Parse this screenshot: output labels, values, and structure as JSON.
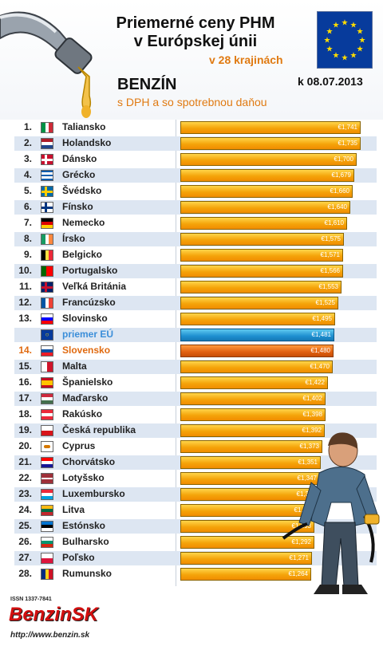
{
  "header": {
    "title_line1": "Priemerné ceny PHM",
    "title_line2": "v Európskej únii",
    "subtitle": "v 28 krajinách",
    "fuel_type": "BENZÍN",
    "price_note": "s DPH a so spotrebnou daňou",
    "date": "k 08.07.2013"
  },
  "footer": {
    "issn": "ISSN 1337-7841",
    "logo": "BenzinSK",
    "url": "http://www.benzin.sk"
  },
  "colors": {
    "bar": "#f5a40a",
    "eu_bar": "#1e8fd0",
    "sk_bar": "#e06010",
    "highlight_text": "#e07a12"
  },
  "chart_data": {
    "type": "bar",
    "orientation": "horizontal",
    "xlim": [
      0,
      1.8
    ],
    "rows": [
      {
        "rank": "1.",
        "country": "Taliansko",
        "value": "€1,741",
        "v": 1.741,
        "flag": "it"
      },
      {
        "rank": "2.",
        "country": "Holandsko",
        "value": "€1,735",
        "v": 1.735,
        "flag": "nl"
      },
      {
        "rank": "3.",
        "country": "Dánsko",
        "value": "€1,700",
        "v": 1.7,
        "flag": "dk"
      },
      {
        "rank": "4.",
        "country": "Grécko",
        "value": "€1,679",
        "v": 1.679,
        "flag": "gr"
      },
      {
        "rank": "5.",
        "country": "Švédsko",
        "value": "€1,660",
        "v": 1.66,
        "flag": "se"
      },
      {
        "rank": "6.",
        "country": "Fínsko",
        "value": "€1,640",
        "v": 1.64,
        "flag": "fi"
      },
      {
        "rank": "7.",
        "country": "Nemecko",
        "value": "€1,610",
        "v": 1.61,
        "flag": "de"
      },
      {
        "rank": "8.",
        "country": "Írsko",
        "value": "€1,575",
        "v": 1.575,
        "flag": "ie"
      },
      {
        "rank": "9.",
        "country": "Belgicko",
        "value": "€1,571",
        "v": 1.571,
        "flag": "be"
      },
      {
        "rank": "10.",
        "country": "Portugalsko",
        "value": "€1,566",
        "v": 1.566,
        "flag": "pt"
      },
      {
        "rank": "11.",
        "country": "Veľká Británia",
        "value": "€1,553",
        "v": 1.553,
        "flag": "gb"
      },
      {
        "rank": "12.",
        "country": "Francúzsko",
        "value": "€1,525",
        "v": 1.525,
        "flag": "fr"
      },
      {
        "rank": "13.",
        "country": "Slovinsko",
        "value": "€1,495",
        "v": 1.495,
        "flag": "si"
      },
      {
        "rank": "",
        "country": "priemer EÚ",
        "value": "€1,481",
        "v": 1.481,
        "flag": "eu",
        "kind": "eu"
      },
      {
        "rank": "14.",
        "country": "Slovensko",
        "value": "€1,480",
        "v": 1.48,
        "flag": "sk",
        "kind": "sk"
      },
      {
        "rank": "15.",
        "country": "Malta",
        "value": "€1,470",
        "v": 1.47,
        "flag": "mt"
      },
      {
        "rank": "16.",
        "country": "Španielsko",
        "value": "€1,422",
        "v": 1.422,
        "flag": "es"
      },
      {
        "rank": "17.",
        "country": "Maďarsko",
        "value": "€1,402",
        "v": 1.402,
        "flag": "hu"
      },
      {
        "rank": "18.",
        "country": "Rakúsko",
        "value": "€1,398",
        "v": 1.398,
        "flag": "at"
      },
      {
        "rank": "19.",
        "country": "Česká republika",
        "value": "€1,392",
        "v": 1.392,
        "flag": "cz"
      },
      {
        "rank": "20.",
        "country": "Cyprus",
        "value": "€1,373",
        "v": 1.373,
        "flag": "cy"
      },
      {
        "rank": "21.",
        "country": "Chorvátsko",
        "value": "€1,351",
        "v": 1.351,
        "flag": "hr"
      },
      {
        "rank": "22.",
        "country": "Lotyšsko",
        "value": "€1,347",
        "v": 1.347,
        "flag": "lv"
      },
      {
        "rank": "23.",
        "country": "Luxembursko",
        "value": "€1,341",
        "v": 1.341,
        "flag": "lu"
      },
      {
        "rank": "24.",
        "country": "Litva",
        "value": "€1,317",
        "v": 1.317,
        "flag": "lt"
      },
      {
        "rank": "25.",
        "country": "Estónsko",
        "value": "€1,293",
        "v": 1.293,
        "flag": "ee"
      },
      {
        "rank": "26.",
        "country": "Bulharsko",
        "value": "€1,292",
        "v": 1.292,
        "flag": "bg"
      },
      {
        "rank": "27.",
        "country": "Poľsko",
        "value": "€1,271",
        "v": 1.271,
        "flag": "pl"
      },
      {
        "rank": "28.",
        "country": "Rumunsko",
        "value": "€1,264",
        "v": 1.264,
        "flag": "ro"
      }
    ]
  }
}
